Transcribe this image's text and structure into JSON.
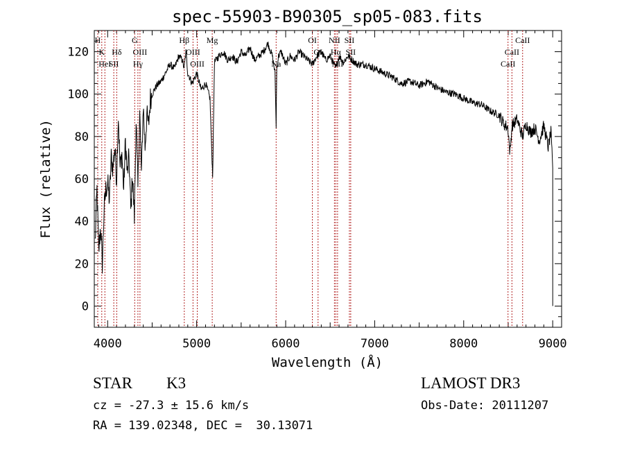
{
  "chart_data": {
    "type": "line",
    "title": "spec-55903-B90305_sp05-083.fits",
    "xlabel": "Wavelength (Å)",
    "ylabel": "Flux (relative)",
    "xlim": [
      3850,
      9100
    ],
    "ylim": [
      -10,
      130
    ],
    "xticks": [
      4000,
      5000,
      6000,
      7000,
      8000,
      9000
    ],
    "yticks": [
      0,
      20,
      40,
      60,
      80,
      100,
      120
    ],
    "series": [
      {
        "name": "flux",
        "x": [
          3860,
          3880,
          3900,
          3920,
          3940,
          3960,
          3980,
          4000,
          4020,
          4040,
          4060,
          4080,
          4100,
          4120,
          4140,
          4160,
          4180,
          4200,
          4220,
          4240,
          4260,
          4280,
          4300,
          4320,
          4340,
          4360,
          4380,
          4400,
          4420,
          4440,
          4460,
          4480,
          4500,
          4550,
          4600,
          4650,
          4700,
          4750,
          4800,
          4840,
          4860,
          4880,
          4900,
          4950,
          5000,
          5050,
          5100,
          5150,
          5170,
          5180,
          5200,
          5250,
          5300,
          5350,
          5400,
          5450,
          5500,
          5550,
          5600,
          5650,
          5700,
          5750,
          5800,
          5850,
          5880,
          5893,
          5900,
          5920,
          5950,
          6000,
          6050,
          6100,
          6150,
          6200,
          6250,
          6300,
          6350,
          6400,
          6450,
          6500,
          6563,
          6600,
          6650,
          6700,
          6750,
          6800,
          6900,
          7000,
          7100,
          7200,
          7300,
          7400,
          7500,
          7600,
          7700,
          7800,
          7900,
          8000,
          8100,
          8200,
          8300,
          8400,
          8450,
          8498,
          8520,
          8542,
          8600,
          8662,
          8700,
          8750,
          8800,
          8850,
          8900,
          8950,
          8980,
          9000
        ],
        "y": [
          30,
          55,
          25,
          38,
          20,
          45,
          55,
          58,
          50,
          70,
          65,
          75,
          60,
          90,
          65,
          72,
          55,
          78,
          62,
          70,
          45,
          62,
          42,
          88,
          55,
          92,
          62,
          95,
          75,
          90,
          85,
          98,
          100,
          104,
          106,
          110,
          114,
          112,
          118,
          116,
          112,
          120,
          110,
          105,
          110,
          102,
          105,
          98,
          72,
          62,
          115,
          118,
          120,
          116,
          118,
          115,
          120,
          118,
          122,
          116,
          118,
          120,
          124,
          118,
          110,
          85,
          112,
          118,
          120,
          114,
          118,
          116,
          120,
          118,
          116,
          114,
          118,
          120,
          116,
          118,
          112,
          118,
          115,
          118,
          116,
          114,
          114,
          112,
          110,
          108,
          105,
          106,
          104,
          106,
          103,
          101,
          100,
          98,
          96,
          95,
          92,
          90,
          86,
          84,
          72,
          85,
          88,
          80,
          86,
          82,
          84,
          78,
          85,
          75,
          82,
          65
        ]
      }
    ],
    "lines": [
      {
        "x": 3889,
        "label": "H",
        "row": 0
      },
      {
        "x": 3934,
        "label": "K",
        "row": 1
      },
      {
        "x": 3969,
        "label": "HeI",
        "row": 2
      },
      {
        "x": 4069,
        "label": "SII",
        "row": 2
      },
      {
        "x": 4102,
        "label": "Hδ",
        "row": 1
      },
      {
        "x": 4304,
        "label": "G",
        "row": 0
      },
      {
        "x": 4340,
        "label": "Hγ",
        "row": 2
      },
      {
        "x": 4363,
        "label": "OIII",
        "row": 1
      },
      {
        "x": 4861,
        "label": "Hβ",
        "row": 0
      },
      {
        "x": 4959,
        "label": "OIII",
        "row": 1
      },
      {
        "x": 5007,
        "label": "OIII",
        "row": 2
      },
      {
        "x": 5175,
        "label": "Mg",
        "row": 0
      },
      {
        "x": 5893,
        "label": "Na",
        "row": 2
      },
      {
        "x": 6300,
        "label": "OI",
        "row": 0
      },
      {
        "x": 6364,
        "label": "OI",
        "row": 1
      },
      {
        "x": 6548,
        "label": "NII",
        "row": 0
      },
      {
        "x": 6563,
        "label": "Hα",
        "row": 1
      },
      {
        "x": 6583,
        "label": "NII",
        "row": 2
      },
      {
        "x": 6716,
        "label": "SII",
        "row": 0
      },
      {
        "x": 6731,
        "label": "SII",
        "row": 1
      },
      {
        "x": 8498,
        "label": "CaII",
        "row": 2
      },
      {
        "x": 8542,
        "label": "CaII",
        "row": 1
      },
      {
        "x": 8662,
        "label": "CaII",
        "row": 0
      }
    ]
  },
  "footer": {
    "class_label": "STAR",
    "subclass": "K3",
    "survey": "LAMOST DR3",
    "redshift": "cz = -27.3 ± 15.6 km/s",
    "obs_date": "Obs-Date: 20111207",
    "coords": "RA = 139.02348, DEC =  30.13071"
  }
}
